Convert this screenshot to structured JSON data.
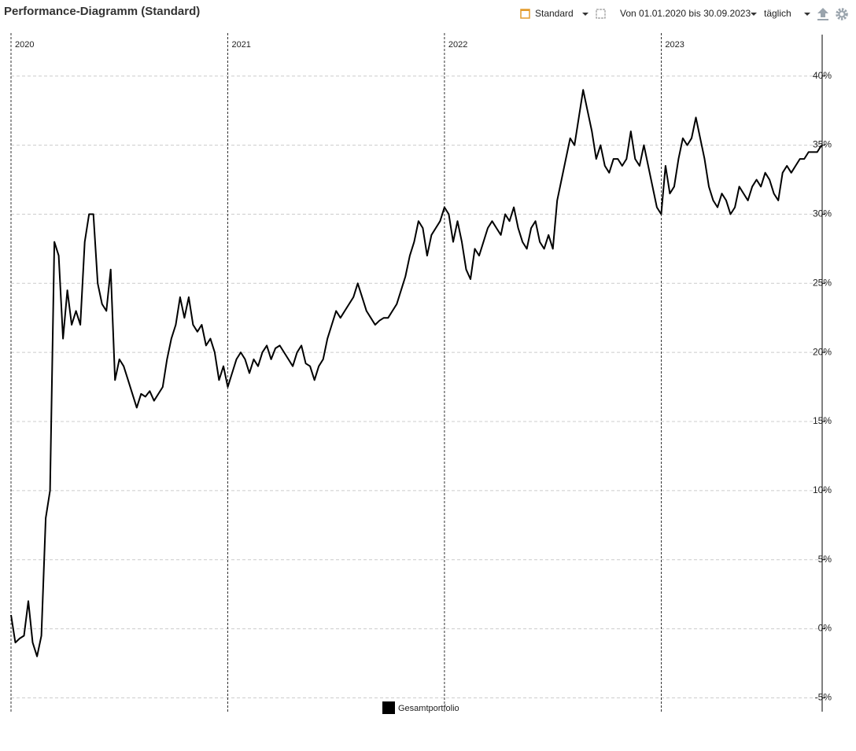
{
  "toolbar": {
    "view": "Standard",
    "range": "Von 01.01.2020 bis 30.09.2023",
    "interval": "täglich"
  },
  "chart_data": {
    "type": "line",
    "title": "Performance-Diagramm (Standard)",
    "xlim": [
      2020,
      2023.75
    ],
    "xticks": [
      2020,
      2021,
      2022,
      2023
    ],
    "ylim": [
      -6,
      43
    ],
    "yticks": [
      {
        "value": -5,
        "label": "-5%"
      },
      {
        "value": 0,
        "label": "0%"
      },
      {
        "value": 5,
        "label": "5%"
      },
      {
        "value": 10,
        "label": "10%"
      },
      {
        "value": 15,
        "label": "15%"
      },
      {
        "value": 20,
        "label": "20%"
      },
      {
        "value": 25,
        "label": "25%"
      },
      {
        "value": 30,
        "label": "30%"
      },
      {
        "value": 35,
        "label": "35%"
      },
      {
        "value": 40,
        "label": "40%"
      }
    ],
    "grid": true,
    "legend": "bottom",
    "x": [
      2020,
      2020.02,
      2020.04,
      2020.06,
      2020.08,
      2020.1,
      2020.12,
      2020.14,
      2020.16,
      2020.18,
      2020.2,
      2020.22,
      2020.24,
      2020.26,
      2020.28,
      2020.3,
      2020.32,
      2020.34,
      2020.36,
      2020.38,
      2020.4,
      2020.42,
      2020.44,
      2020.46,
      2020.48,
      2020.5,
      2020.52,
      2020.54,
      2020.56,
      2020.58,
      2020.6,
      2020.62,
      2020.64,
      2020.66,
      2020.68,
      2020.7,
      2020.72,
      2020.74,
      2020.76,
      2020.78,
      2020.8,
      2020.82,
      2020.84,
      2020.86,
      2020.88,
      2020.9,
      2020.92,
      2020.94,
      2020.96,
      2020.98,
      2021,
      2021.02,
      2021.04,
      2021.06,
      2021.08,
      2021.1,
      2021.12,
      2021.14,
      2021.16,
      2021.18,
      2021.2,
      2021.22,
      2021.24,
      2021.26,
      2021.28,
      2021.3,
      2021.32,
      2021.34,
      2021.36,
      2021.38,
      2021.4,
      2021.42,
      2021.44,
      2021.46,
      2021.48,
      2021.5,
      2021.52,
      2021.54,
      2021.56,
      2021.58,
      2021.6,
      2021.62,
      2021.64,
      2021.66,
      2021.68,
      2021.7,
      2021.72,
      2021.74,
      2021.76,
      2021.78,
      2021.8,
      2021.82,
      2021.84,
      2021.86,
      2021.88,
      2021.9,
      2021.92,
      2021.94,
      2021.96,
      2021.98,
      2022,
      2022.02,
      2022.04,
      2022.06,
      2022.08,
      2022.1,
      2022.12,
      2022.14,
      2022.16,
      2022.18,
      2022.2,
      2022.22,
      2022.24,
      2022.26,
      2022.28,
      2022.3,
      2022.32,
      2022.34,
      2022.36,
      2022.38,
      2022.4,
      2022.42,
      2022.44,
      2022.46,
      2022.48,
      2022.5,
      2022.52,
      2022.54,
      2022.56,
      2022.58,
      2022.6,
      2022.62,
      2022.64,
      2022.66,
      2022.68,
      2022.7,
      2022.72,
      2022.74,
      2022.76,
      2022.78,
      2022.8,
      2022.82,
      2022.84,
      2022.86,
      2022.88,
      2022.9,
      2022.92,
      2022.94,
      2022.96,
      2022.98,
      2023,
      2023.02,
      2023.04,
      2023.06,
      2023.08,
      2023.1,
      2023.12,
      2023.14,
      2023.16,
      2023.18,
      2023.2,
      2023.22,
      2023.24,
      2023.26,
      2023.28,
      2023.3,
      2023.32,
      2023.34,
      2023.36,
      2023.38,
      2023.4,
      2023.42,
      2023.44,
      2023.46,
      2023.48,
      2023.5,
      2023.52,
      2023.54,
      2023.56,
      2023.58,
      2023.6,
      2023.62,
      2023.64,
      2023.66,
      2023.68,
      2023.7,
      2023.72,
      2023.74
    ],
    "series": [
      {
        "name": "Gesamtportfolio",
        "color": "#000000",
        "values": [
          1,
          -1,
          -0.7,
          -0.5,
          2,
          -1,
          -2,
          -0.5,
          8,
          10,
          28,
          27,
          21,
          24.5,
          22,
          23,
          22,
          28,
          30,
          30,
          25,
          23.5,
          23,
          26,
          18,
          19.5,
          19,
          18,
          17,
          16,
          17,
          16.8,
          17.2,
          16.5,
          17,
          17.5,
          19.5,
          21,
          22,
          24,
          22.5,
          24,
          22,
          21.5,
          22,
          20.5,
          21,
          20,
          18,
          19,
          17.5,
          18.5,
          19.5,
          20,
          19.5,
          18.5,
          19.5,
          19,
          20,
          20.5,
          19.5,
          20.3,
          20.5,
          20,
          19.5,
          19,
          20,
          20.5,
          19.2,
          19,
          18,
          19,
          19.5,
          21,
          22,
          23,
          22.5,
          23,
          23.5,
          24,
          25,
          24,
          23,
          22.5,
          22,
          22.3,
          22.5,
          22.5,
          23,
          23.5,
          24.5,
          25.5,
          27,
          28,
          29.5,
          29,
          27,
          28.5,
          29,
          29.5,
          30.5,
          30,
          28,
          29.5,
          28,
          26,
          25.3,
          27.5,
          27,
          28,
          29,
          29.5,
          29,
          28.5,
          30,
          29.5,
          30.5,
          29,
          28,
          27.5,
          29,
          29.5,
          28,
          27.5,
          28.5,
          27.5,
          31,
          32.5,
          34,
          35.5,
          35,
          37,
          39,
          37.5,
          36,
          34,
          35,
          33.5,
          33,
          34,
          34,
          33.5,
          34,
          36,
          34,
          33.5,
          35,
          33.5,
          32,
          30.5,
          30,
          33.5,
          31.5,
          32,
          34,
          35.5,
          35,
          35.5,
          37,
          35.5,
          34,
          32,
          31,
          30.5,
          31.5,
          31,
          30,
          30.5,
          32,
          31.5,
          31,
          32,
          32.5,
          32,
          33,
          32.5,
          31.5,
          31,
          33,
          33.5,
          33,
          33.5,
          34,
          34,
          34.5,
          34.5,
          34.5,
          35
        ]
      }
    ]
  }
}
